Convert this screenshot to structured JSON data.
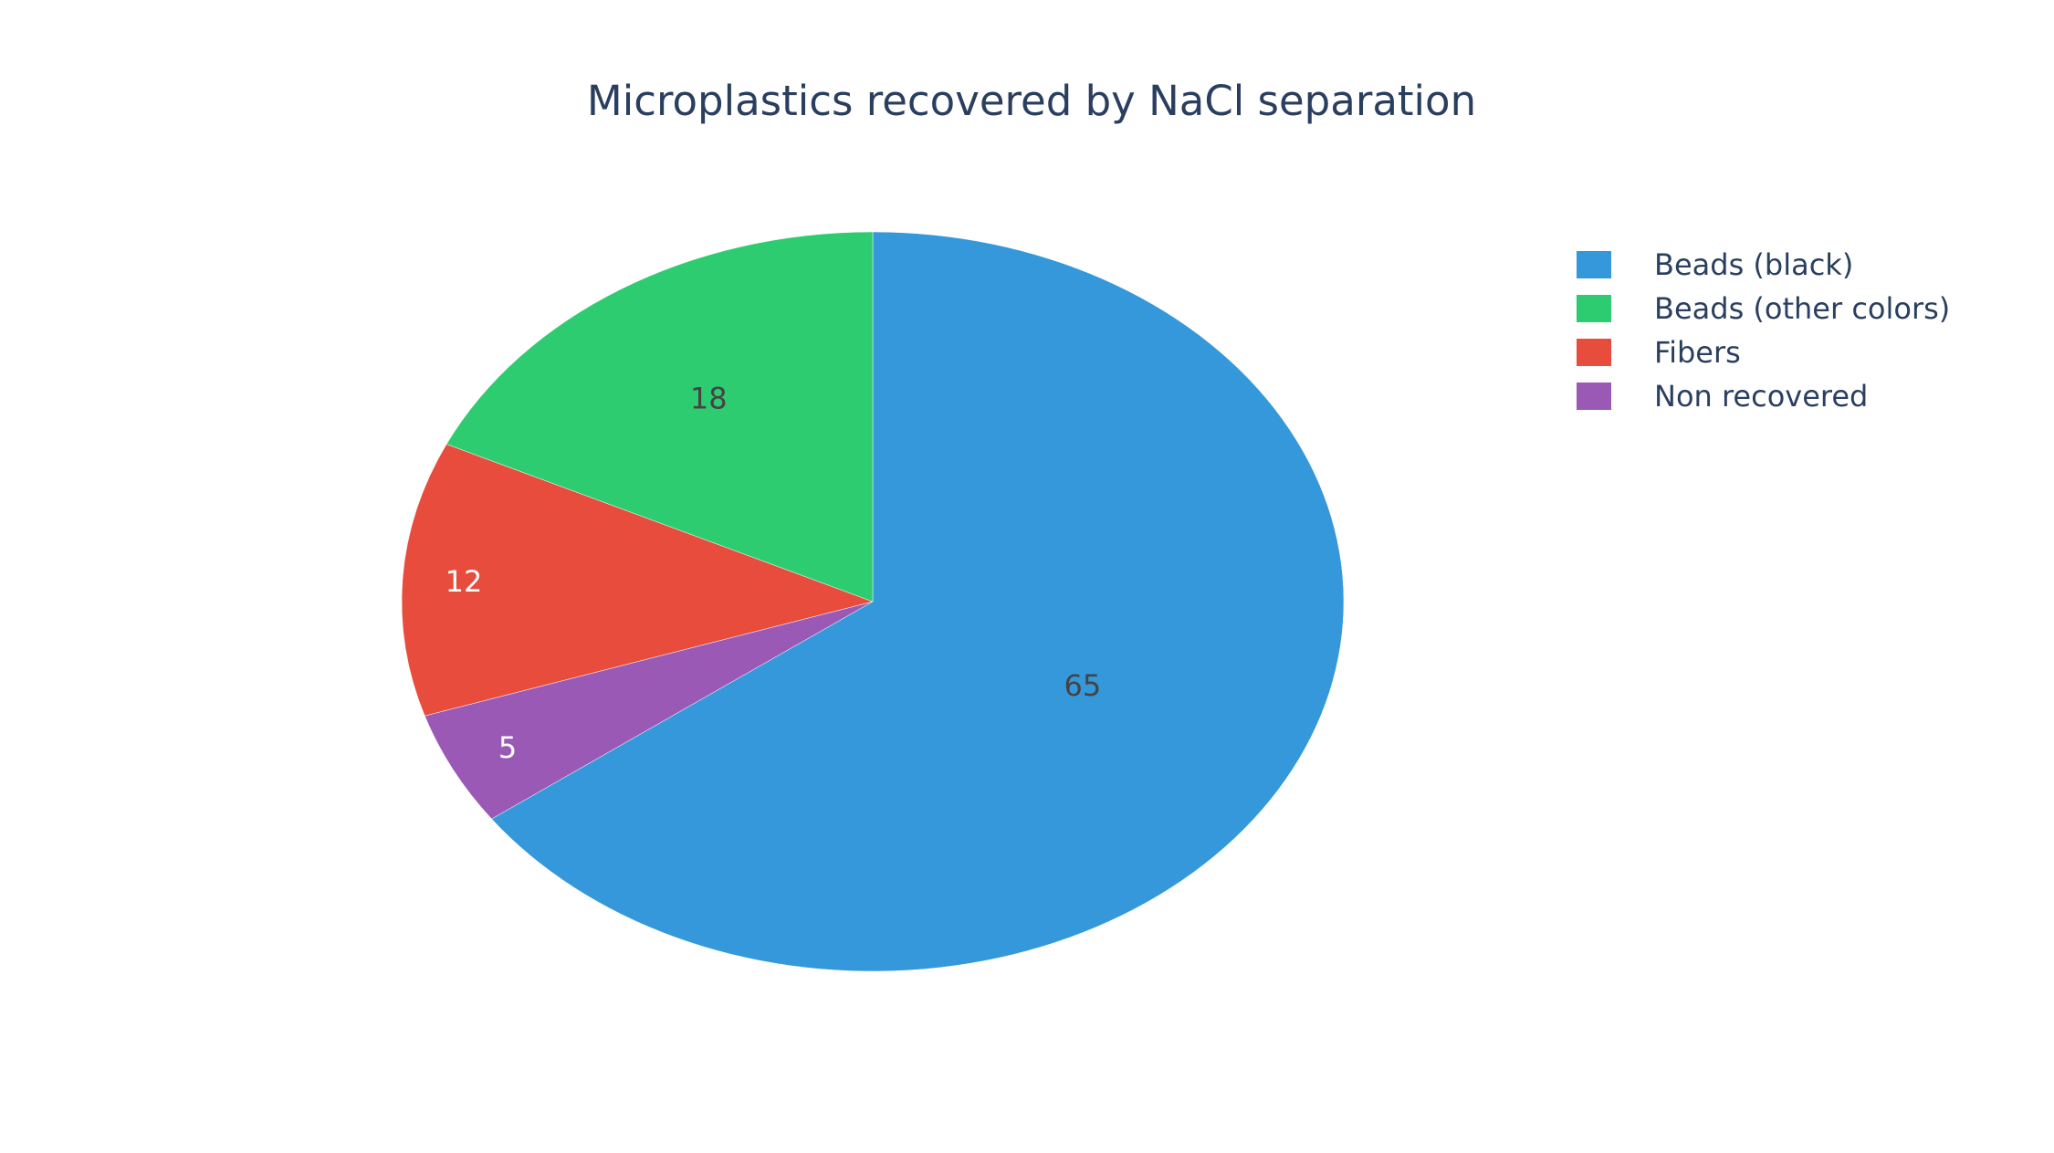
{
  "chart_data": {
    "type": "pie",
    "title": "Microplastics recovered by NaCl separation",
    "categories": [
      "Beads (black)",
      "Beads (other colors)",
      "Fibers",
      "Non recovered"
    ],
    "values": [
      65,
      18,
      12,
      5
    ],
    "colors": [
      "#3498db",
      "#2ecc71",
      "#e74c3c",
      "#9b59b6"
    ],
    "label_colors": [
      "#444444",
      "#444444",
      "#ffffff",
      "#ffffff"
    ],
    "slice_order_clockwise_from_top": [
      "Beads (black)",
      "Non recovered",
      "Fibers",
      "Beads (other colors)"
    ],
    "legend_position": "top-right"
  }
}
